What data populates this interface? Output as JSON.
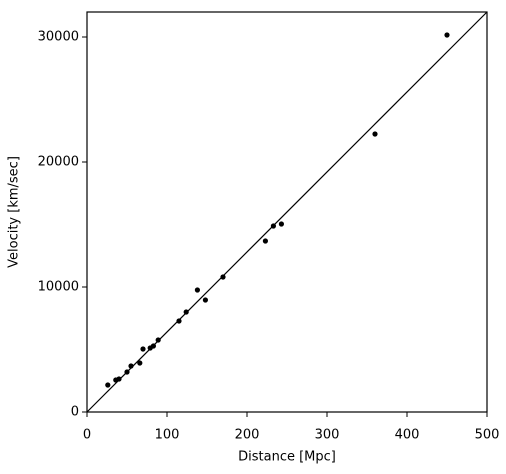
{
  "chart_data": {
    "type": "scatter",
    "xlabel": "Distance [Mpc]",
    "ylabel": "Velocity [km/sec]",
    "x": [
      26,
      36,
      40,
      50,
      55,
      66,
      70,
      79,
      83,
      89,
      115,
      124,
      138,
      148,
      170,
      223,
      233,
      243,
      360,
      450
    ],
    "values": [
      2160,
      2560,
      2640,
      3200,
      3680,
      3920,
      5040,
      5120,
      5280,
      5760,
      7280,
      8000,
      9760,
      8960,
      10800,
      13680,
      14880,
      15040,
      22240,
      30160
    ],
    "color": "#000000",
    "line": {
      "x": [
        0,
        500
      ],
      "values": [
        0,
        32000
      ],
      "color": "#000000"
    },
    "xlim": [
      0,
      500
    ],
    "xticks": [
      0,
      100,
      200,
      300,
      400,
      500
    ],
    "ylim": [
      0,
      32000
    ],
    "yticks": [
      0,
      10000,
      20000,
      30000
    ],
    "grid": false
  }
}
